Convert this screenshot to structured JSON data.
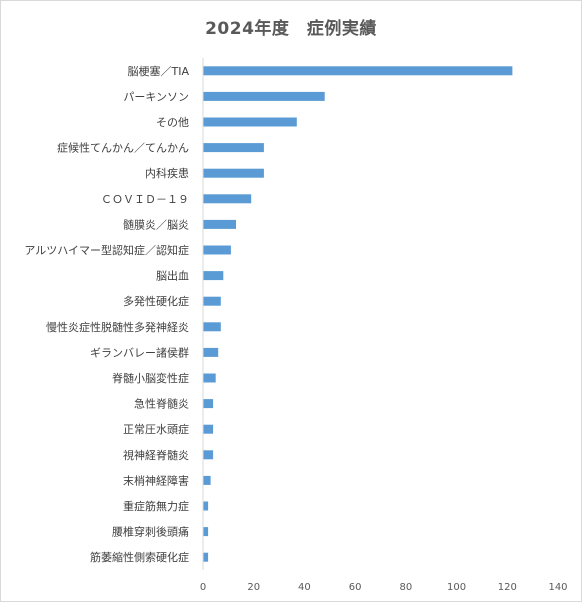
{
  "chart_data": {
    "type": "bar",
    "orientation": "horizontal",
    "title": "2024年度　症例実績",
    "categories": [
      "脳梗塞／TIA",
      "パーキンソン",
      "その他",
      "症候性てんかん／てんかん",
      "内科疾患",
      "ＣＯＶＩＤ－１９",
      "髄膜炎／脳炎",
      "アルツハイマー型認知症／認知症",
      "脳出血",
      "多発性硬化症",
      "慢性炎症性脱髄性多発神経炎",
      "ギランバレー諸侯群",
      "脊髄小脳変性症",
      "急性脊髄炎",
      "正常圧水頭症",
      "視神経脊髄炎",
      "末梢神経障害",
      "重症筋無力症",
      "腰椎穿刺後頭痛",
      "筋萎縮性側索硬化症"
    ],
    "values": [
      122,
      48,
      37,
      24,
      24,
      19,
      13,
      11,
      8,
      7,
      7,
      6,
      5,
      4,
      4,
      4,
      3,
      2,
      2,
      2
    ],
    "xlim": [
      0,
      140
    ],
    "xticks": [
      0,
      20,
      40,
      60,
      80,
      100,
      120,
      140
    ],
    "xticklabels": [
      "0",
      "20",
      "40",
      "60",
      "80",
      "100",
      "120",
      "140"
    ],
    "xlabel": "",
    "ylabel": "",
    "grid": false,
    "legend": "none",
    "bar_color": "#5b9bd5",
    "axis_color": "#d9d9d9"
  }
}
